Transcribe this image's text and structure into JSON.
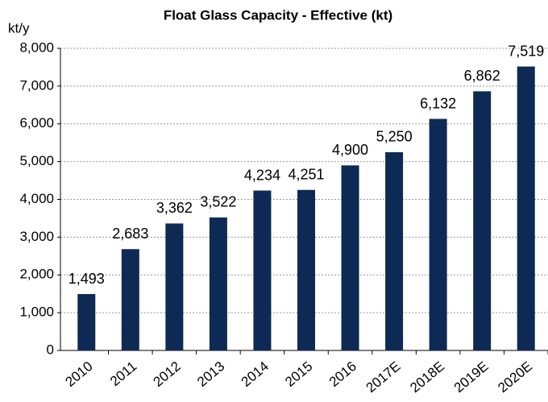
{
  "chart_data": {
    "type": "bar",
    "title": "Float Glass Capacity - Effective (kt)",
    "y_axis_label": "kt/y",
    "categories": [
      "2010",
      "2011",
      "2012",
      "2013",
      "2014",
      "2015",
      "2016",
      "2017E",
      "2018E",
      "2019E",
      "2020E"
    ],
    "values": [
      1493,
      2683,
      3362,
      3522,
      4234,
      4251,
      4900,
      5250,
      6132,
      6862,
      7519
    ],
    "value_labels": [
      "1,493",
      "2,683",
      "3,362",
      "3,522",
      "4,234",
      "4,251",
      "4,900",
      "5,250",
      "6,132",
      "6,862",
      "7,519"
    ],
    "color": "#0d2a55",
    "ylim": [
      0,
      8000
    ],
    "yticks": [
      0,
      {
        "value": 1000,
        "label": "1,000"
      },
      {
        "value": 2000,
        "label": "2,000"
      },
      {
        "value": 3000,
        "label": "3,000"
      },
      {
        "value": 4000,
        "label": "4,000"
      },
      {
        "value": 5000,
        "label": "5,000"
      },
      {
        "value": 6000,
        "label": "6,000"
      },
      {
        "value": 7000,
        "label": "7,000"
      },
      {
        "value": 8000,
        "label": "8,000"
      }
    ],
    "grid": true
  }
}
